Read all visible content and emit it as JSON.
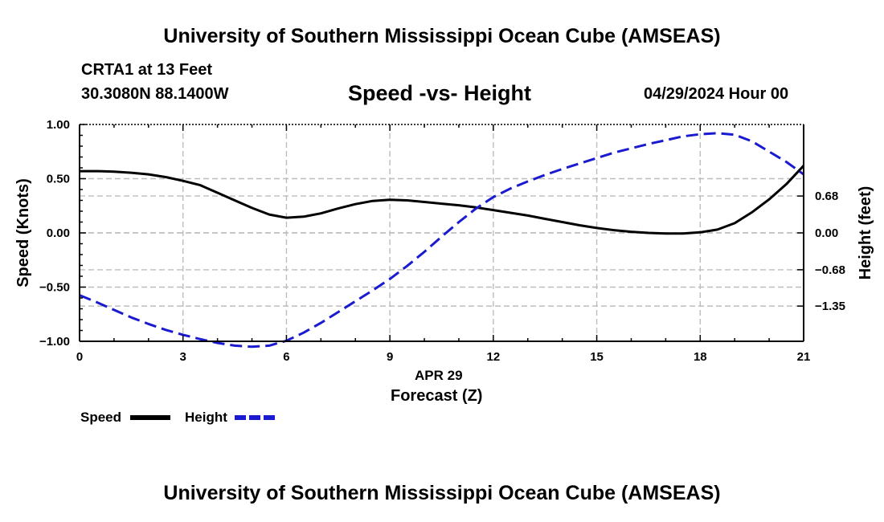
{
  "header": {
    "title": "University of Southern Mississippi Ocean Cube (AMSEAS)",
    "station": "CRTA1 at 13 Feet",
    "coords": "30.3080N  88.1400W",
    "date": "04/29/2024 Hour 00",
    "footer_title": "University of Southern Mississippi Ocean Cube (AMSEAS)"
  },
  "chart_data": {
    "type": "line",
    "title": "Speed -vs- Height",
    "xlabel": "Forecast (Z)",
    "xsublabel": "APR 29",
    "ylabel": "Speed (Knots)",
    "y2label": "Height (feet)",
    "xlim": [
      0,
      21
    ],
    "ylim": [
      -1.0,
      1.0
    ],
    "y2lim": [
      -2.0,
      2.0
    ],
    "xticks": [
      0,
      3,
      6,
      9,
      12,
      15,
      18,
      21
    ],
    "xticklabels": [
      "0",
      "3",
      "6",
      "9",
      "12",
      "15",
      "18",
      "21"
    ],
    "yticks": [
      -1.0,
      -0.5,
      0.0,
      0.5,
      1.0
    ],
    "yticklabels": [
      "−1.00",
      "−0.50",
      "0.00",
      "0.50",
      "1.00"
    ],
    "y2ticks": [
      -1.35,
      -0.68,
      0.0,
      0.68
    ],
    "y2ticklabels": [
      "−1.35",
      "−0.68",
      "0.00",
      "0.68"
    ],
    "grid": true,
    "series": [
      {
        "name": "Speed",
        "axis": "left",
        "color": "#000000",
        "dash": "solid",
        "x": [
          0,
          0.5,
          1,
          1.5,
          2,
          2.5,
          3,
          3.5,
          4,
          4.5,
          5,
          5.5,
          6,
          6.5,
          7,
          7.5,
          8,
          8.5,
          9,
          9.5,
          10,
          10.5,
          11,
          11.5,
          12,
          12.5,
          13,
          13.5,
          14,
          14.5,
          15,
          15.5,
          16,
          16.5,
          17,
          17.5,
          18,
          18.5,
          19,
          19.5,
          20,
          20.5,
          21
        ],
        "values": [
          0.57,
          0.57,
          0.565,
          0.555,
          0.54,
          0.515,
          0.48,
          0.44,
          0.37,
          0.3,
          0.23,
          0.17,
          0.14,
          0.15,
          0.18,
          0.225,
          0.265,
          0.295,
          0.305,
          0.3,
          0.285,
          0.27,
          0.255,
          0.235,
          0.21,
          0.185,
          0.16,
          0.13,
          0.1,
          0.07,
          0.045,
          0.025,
          0.01,
          0.0,
          -0.005,
          -0.005,
          0.005,
          0.03,
          0.09,
          0.19,
          0.31,
          0.45,
          0.62
        ]
      },
      {
        "name": "Height",
        "axis": "right",
        "color": "#1a1ad0",
        "dash": "dashed",
        "x": [
          0,
          0.5,
          1,
          1.5,
          2,
          2.5,
          3,
          3.5,
          4,
          4.5,
          5,
          5.5,
          6,
          6.5,
          7,
          7.5,
          8,
          8.5,
          9,
          9.5,
          10,
          10.5,
          11,
          11.5,
          12,
          12.5,
          13,
          13.5,
          14,
          14.5,
          15,
          15.5,
          16,
          16.5,
          17,
          17.5,
          18,
          18.5,
          19,
          19.5,
          20,
          20.5,
          21
        ],
        "values": [
          -1.15,
          -1.28,
          -1.42,
          -1.56,
          -1.68,
          -1.79,
          -1.88,
          -1.96,
          -2.03,
          -2.08,
          -2.1,
          -2.08,
          -1.99,
          -1.84,
          -1.66,
          -1.46,
          -1.26,
          -1.06,
          -0.85,
          -0.61,
          -0.35,
          -0.07,
          0.2,
          0.45,
          0.66,
          0.82,
          0.95,
          1.07,
          1.18,
          1.28,
          1.38,
          1.48,
          1.56,
          1.64,
          1.71,
          1.78,
          1.82,
          1.84,
          1.81,
          1.69,
          1.5,
          1.31,
          1.08
        ]
      }
    ],
    "legend": [
      {
        "label": "Speed",
        "color": "#000000"
      },
      {
        "label": "Height",
        "color": "#1a1ad0"
      }
    ]
  }
}
